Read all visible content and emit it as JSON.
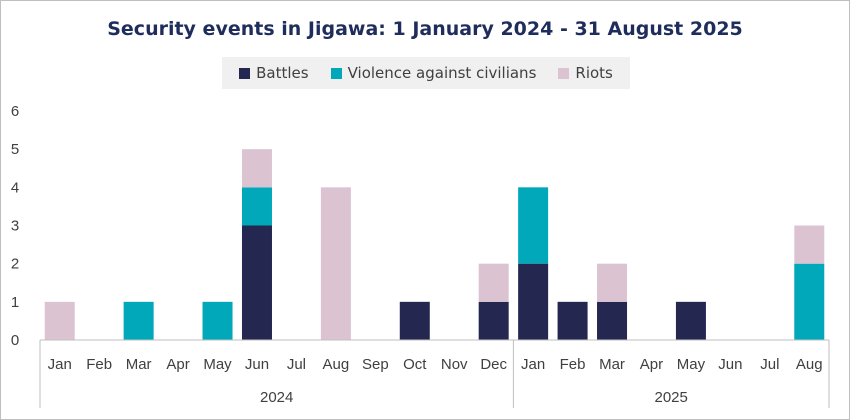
{
  "chart_data": {
    "type": "bar",
    "stacked": true,
    "title": "Security events in Jigawa: 1 January 2024 - 31 August 2025",
    "legend_position": "top",
    "categories": [
      "Jan",
      "Feb",
      "Mar",
      "Apr",
      "May",
      "Jun",
      "Jul",
      "Aug",
      "Sep",
      "Oct",
      "Nov",
      "Dec",
      "Jan",
      "Feb",
      "Mar",
      "Apr",
      "May",
      "Jun",
      "Jul",
      "Aug"
    ],
    "year_groups": [
      {
        "label": "2024",
        "count": 12
      },
      {
        "label": "2025",
        "count": 8
      }
    ],
    "series": [
      {
        "name": "Battles",
        "color": "#242750",
        "values": [
          0,
          0,
          0,
          0,
          0,
          3,
          0,
          0,
          0,
          1,
          0,
          1,
          2,
          1,
          1,
          0,
          1,
          0,
          0,
          0
        ]
      },
      {
        "name": "Violence against civilians",
        "color": "#00a8ba",
        "values": [
          0,
          0,
          1,
          0,
          1,
          1,
          0,
          0,
          0,
          0,
          0,
          0,
          2,
          0,
          0,
          0,
          0,
          0,
          0,
          2
        ]
      },
      {
        "name": "Riots",
        "color": "#dcc3d2",
        "values": [
          1,
          0,
          0,
          0,
          0,
          1,
          0,
          4,
          0,
          0,
          0,
          1,
          0,
          0,
          1,
          0,
          0,
          0,
          0,
          1
        ]
      }
    ],
    "ylim": [
      0,
      6
    ],
    "yticks": [
      0,
      1,
      2,
      3,
      4,
      5,
      6
    ],
    "xlabel": "",
    "ylabel": "",
    "grid": false
  }
}
